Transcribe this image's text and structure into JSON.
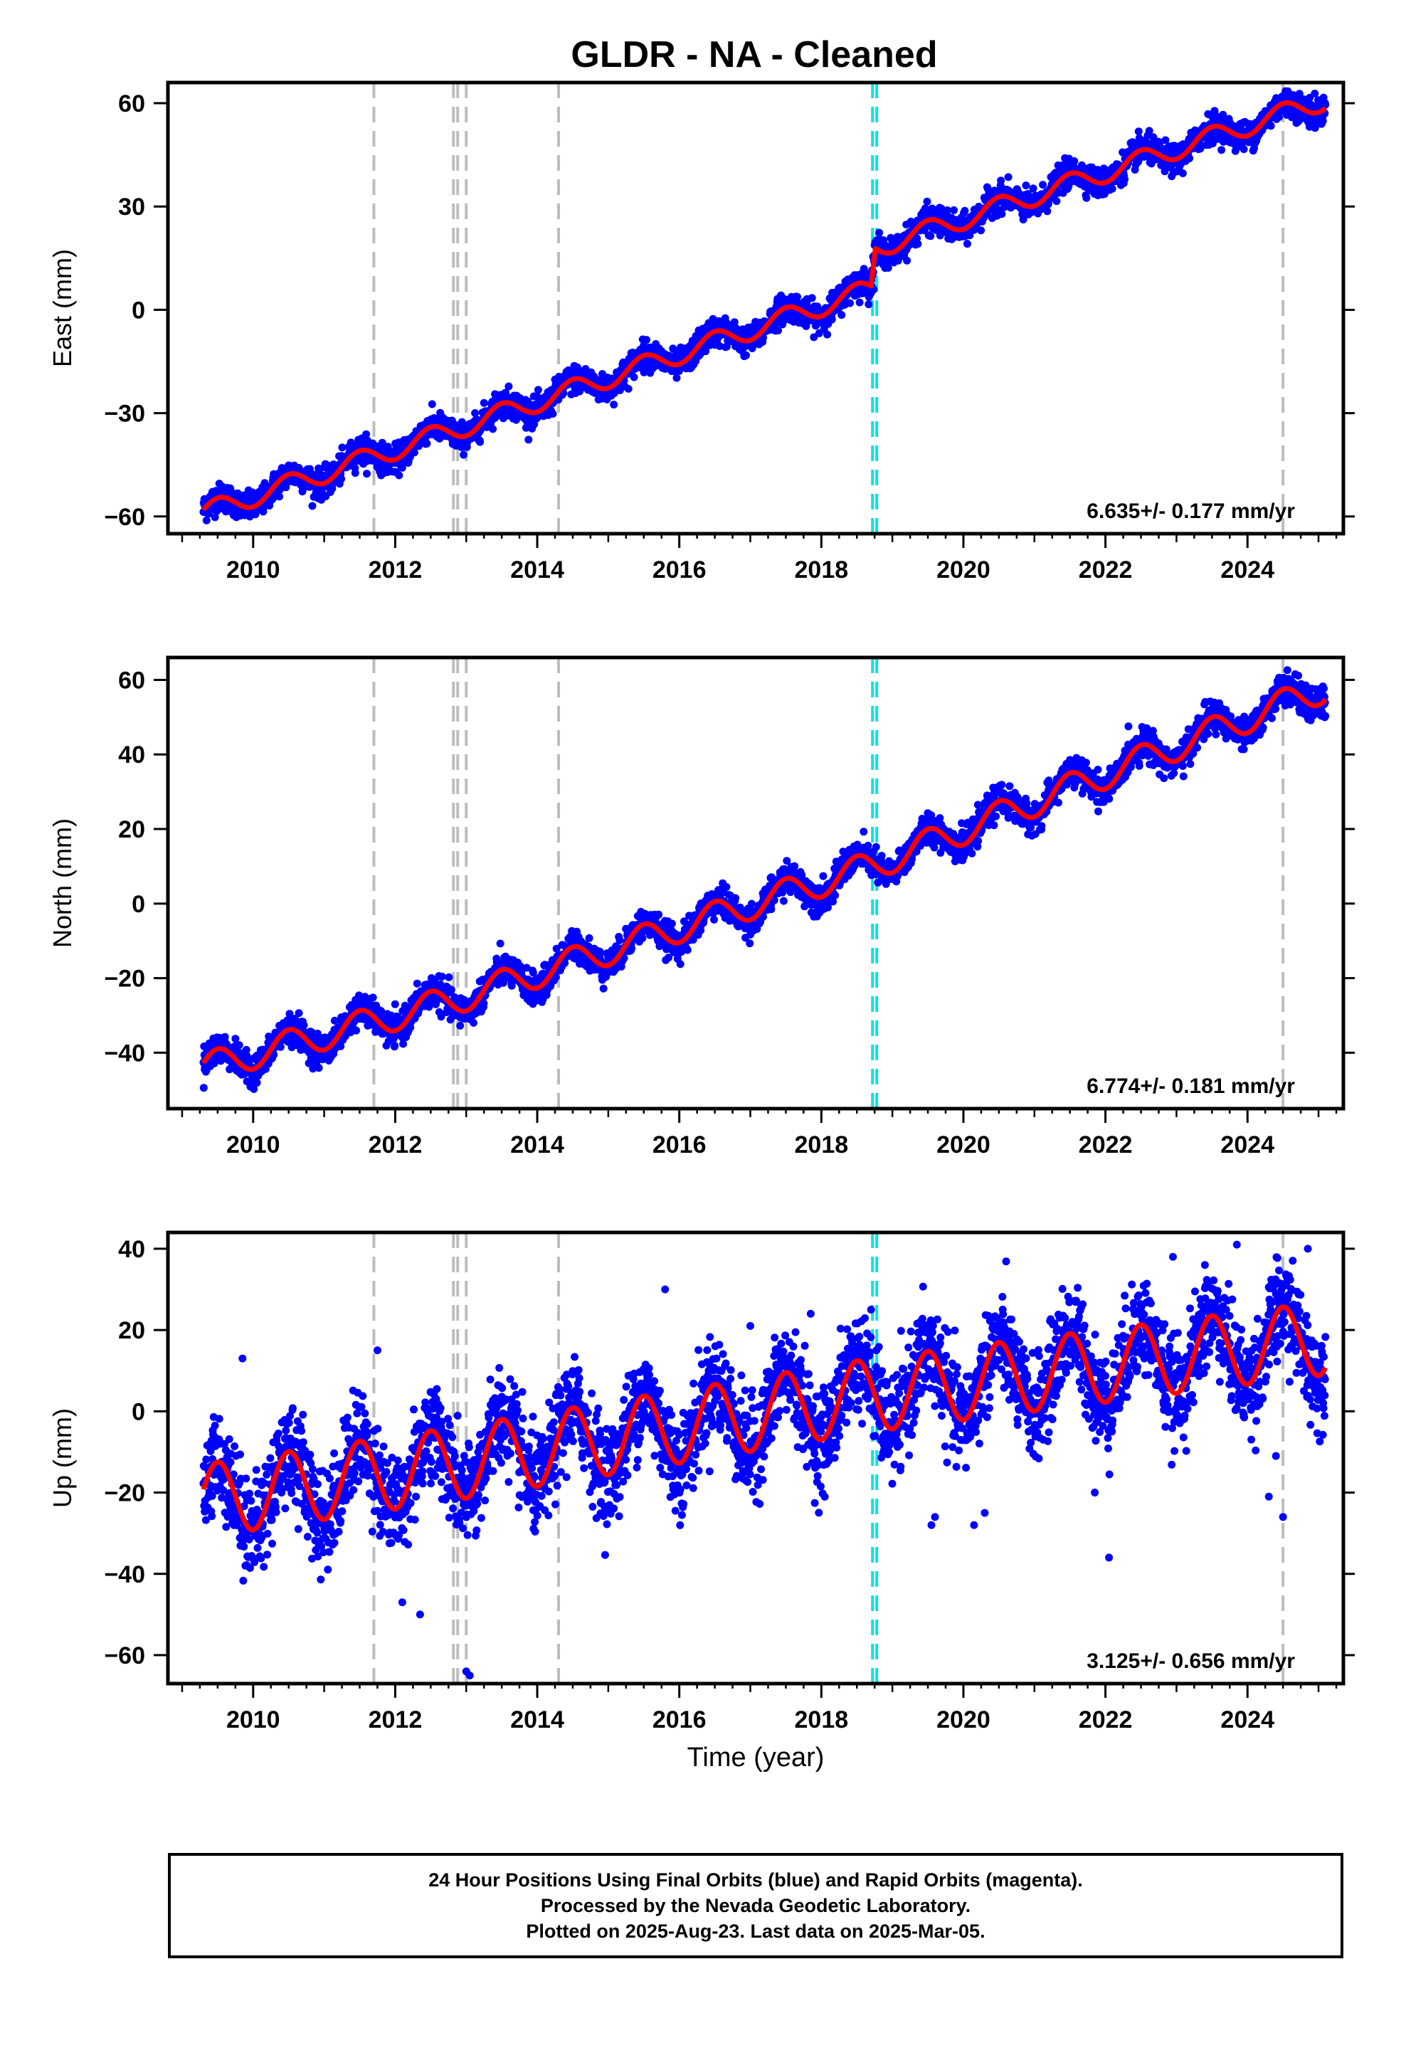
{
  "title": "GLDR  - NA - Cleaned",
  "colors": {
    "points": "#0000ff",
    "fit": "#ff0000",
    "event_gray": "#bdbdbd",
    "event_cyan": "#00e5e5",
    "axes": "#000000"
  },
  "chart_data": [
    {
      "type": "scatter",
      "ylabel": "East (mm)",
      "xlabel": "",
      "xlim": [
        2008.8,
        2025.35
      ],
      "ylim": [
        -65,
        66
      ],
      "x_ticks": [
        2010,
        2012,
        2014,
        2016,
        2018,
        2020,
        2022,
        2024
      ],
      "y_ticks": [
        -60,
        -30,
        0,
        30,
        60
      ],
      "rate_label": "6.635+/- 0.177 mm/yr",
      "series": [
        {
          "kind": "points",
          "trend": [
            [
              2009.3,
              -59
            ],
            [
              2012.8,
              -35
            ],
            [
              2018.7,
              6
            ],
            [
              2018.76,
              18
            ],
            [
              2025.1,
              61
            ]
          ],
          "seasonal_amplitude": 3,
          "scatter": 2
        },
        {
          "kind": "fit",
          "trend": [
            [
              2009.3,
              -59
            ],
            [
              2012.8,
              -35
            ],
            [
              2018.7,
              6
            ],
            [
              2018.76,
              18
            ],
            [
              2025.1,
              61
            ]
          ],
          "seasonal_amplitude": 3
        }
      ],
      "events_gray": [
        2011.7,
        2012.82,
        2012.88,
        2013.0,
        2014.3,
        2024.5
      ],
      "events_cyan": [
        2018.72,
        2018.78
      ]
    },
    {
      "type": "scatter",
      "ylabel": "North (mm)",
      "xlabel": "",
      "xlim": [
        2008.8,
        2025.35
      ],
      "ylim": [
        -55,
        66
      ],
      "x_ticks": [
        2010,
        2012,
        2014,
        2016,
        2018,
        2020,
        2022,
        2024
      ],
      "y_ticks": [
        -40,
        -20,
        0,
        20,
        40,
        60
      ],
      "rate_label": "6.774+/- 0.181 mm/yr",
      "series": [
        {
          "kind": "points",
          "trend": [
            [
              2009.3,
              -44
            ],
            [
              2012.8,
              -26
            ],
            [
              2018.7,
              10
            ],
            [
              2025.1,
              58
            ]
          ],
          "seasonal_amplitude": 4,
          "scatter": 2
        },
        {
          "kind": "fit",
          "trend": [
            [
              2009.3,
              -44
            ],
            [
              2012.8,
              -26
            ],
            [
              2018.7,
              10
            ],
            [
              2025.1,
              58
            ]
          ],
          "seasonal_amplitude": 4
        }
      ],
      "events_gray": [
        2011.7,
        2012.82,
        2012.88,
        2013.0,
        2014.3,
        2024.5
      ],
      "events_cyan": [
        2018.72,
        2018.78
      ]
    },
    {
      "type": "scatter",
      "ylabel": "Up (mm)",
      "xlabel": "Time (year)",
      "xlim": [
        2008.8,
        2025.35
      ],
      "ylim": [
        -67,
        44
      ],
      "x_ticks": [
        2010,
        2012,
        2014,
        2016,
        2018,
        2020,
        2022,
        2024
      ],
      "y_ticks": [
        -60,
        -40,
        -20,
        0,
        20,
        40
      ],
      "rate_label": "3.125+/- 0.656 mm/yr",
      "series": [
        {
          "kind": "points",
          "trend": [
            [
              2009.3,
              -22
            ],
            [
              2012.8,
              -13
            ],
            [
              2018.7,
              4
            ],
            [
              2025.1,
              18
            ]
          ],
          "seasonal_amplitude": 9,
          "scatter": 6
        },
        {
          "kind": "fit",
          "trend": [
            [
              2009.3,
              -22
            ],
            [
              2012.8,
              -13
            ],
            [
              2018.7,
              4
            ],
            [
              2025.1,
              18
            ]
          ],
          "seasonal_amplitude": 9
        }
      ],
      "outliers": [
        [
          2009.85,
          13
        ],
        [
          2011.75,
          15
        ],
        [
          2012.1,
          -47
        ],
        [
          2012.35,
          -50
        ],
        [
          2013.0,
          -64
        ],
        [
          2013.05,
          -65
        ],
        [
          2015.8,
          30
        ],
        [
          2017.0,
          21
        ],
        [
          2017.85,
          24
        ],
        [
          2018.7,
          25
        ],
        [
          2019.55,
          -28
        ],
        [
          2019.6,
          -26
        ],
        [
          2020.15,
          -28
        ],
        [
          2020.3,
          -25
        ],
        [
          2021.85,
          -20
        ],
        [
          2022.05,
          -36
        ],
        [
          2022.95,
          38
        ],
        [
          2023.4,
          36
        ],
        [
          2023.85,
          41
        ],
        [
          2024.4,
          -11
        ],
        [
          2024.3,
          -21
        ],
        [
          2024.5,
          -26
        ],
        [
          2024.85,
          40
        ]
      ],
      "events_gray": [
        2011.7,
        2012.82,
        2012.88,
        2013.0,
        2014.3,
        2024.5
      ],
      "events_cyan": [
        2018.72,
        2018.78
      ]
    }
  ],
  "caption": {
    "line1": "24 Hour Positions Using Final Orbits (blue) and Rapid Orbits (magenta).",
    "line2": "Processed by the Nevada Geodetic Laboratory.",
    "line3": "Plotted on 2025-Aug-23. Last data on 2025-Mar-05."
  }
}
